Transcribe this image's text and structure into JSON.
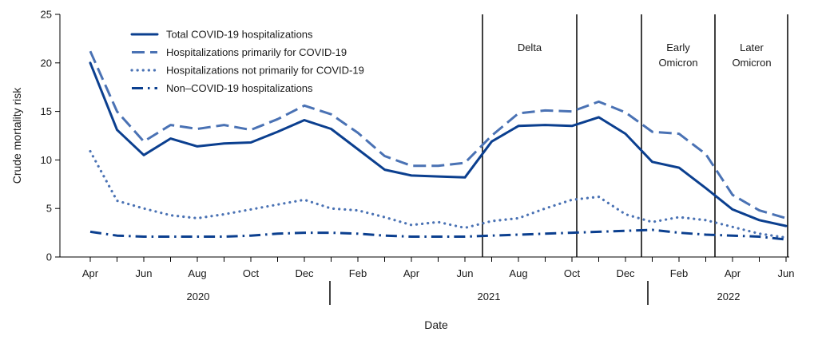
{
  "chart_data": {
    "type": "line",
    "ylabel": "Crude mortality risk",
    "xlabel": "Date",
    "ylim": [
      0,
      25
    ],
    "yticks": [
      0,
      5,
      10,
      15,
      20,
      25
    ],
    "x_tick_labels": [
      "Apr",
      "Jun",
      "Aug",
      "Oct",
      "Dec",
      "Feb",
      "Apr",
      "Jun",
      "Aug",
      "Oct",
      "Dec",
      "Feb",
      "Apr",
      "Jun"
    ],
    "year_labels": [
      "2020",
      "2021",
      "2022"
    ],
    "periods": [
      {
        "label_lines": [
          "Delta"
        ]
      },
      {
        "label_lines": [
          "Early",
          "Omicron"
        ]
      },
      {
        "label_lines": [
          "Later",
          "Omicron"
        ]
      }
    ],
    "months": [
      "Apr 2020",
      "May 2020",
      "Jun 2020",
      "Jul 2020",
      "Aug 2020",
      "Sep 2020",
      "Oct 2020",
      "Nov 2020",
      "Dec 2020",
      "Jan 2021",
      "Feb 2021",
      "Mar 2021",
      "Apr 2021",
      "May 2021",
      "Jun 2021",
      "Jul 2021",
      "Aug 2021",
      "Sep 2021",
      "Oct 2021",
      "Nov 2021",
      "Dec 2021",
      "Jan 2022",
      "Feb 2022",
      "Mar 2022",
      "Apr 2022",
      "May 2022",
      "Jun 2022"
    ],
    "series": [
      {
        "name": "Total COVID-19 hospitalizations",
        "style": "solid",
        "color": "#0b3f8f",
        "values": [
          20.0,
          13.1,
          10.5,
          12.2,
          11.4,
          11.7,
          11.8,
          12.9,
          14.1,
          13.2,
          11.1,
          9.0,
          8.4,
          8.3,
          8.2,
          11.9,
          13.5,
          13.6,
          13.5,
          14.4,
          12.7,
          9.8,
          9.2,
          7.1,
          4.9,
          3.8,
          3.2
        ]
      },
      {
        "name": "Hospitalizations primarily for COVID-19",
        "style": "dashed",
        "color": "#4a72b4",
        "values": [
          21.2,
          15.0,
          11.9,
          13.6,
          13.2,
          13.6,
          13.1,
          14.2,
          15.6,
          14.7,
          12.8,
          10.4,
          9.4,
          9.4,
          9.7,
          12.5,
          14.8,
          15.1,
          15.0,
          16.0,
          14.9,
          12.9,
          12.7,
          10.6,
          6.4,
          4.8,
          4.0
        ]
      },
      {
        "name": "Hospitalizations not primarily for COVID-19",
        "style": "dotted",
        "color": "#4a72b4",
        "values": [
          10.9,
          5.8,
          5.0,
          4.3,
          4.0,
          4.4,
          4.9,
          5.4,
          5.9,
          5.0,
          4.8,
          4.1,
          3.3,
          3.6,
          3.0,
          3.7,
          4.0,
          5.0,
          5.9,
          6.2,
          4.4,
          3.6,
          4.1,
          3.8,
          3.1,
          2.4,
          2.0
        ]
      },
      {
        "name": "Non–COVID-19 hospitalizations",
        "style": "dashdot",
        "color": "#0b3f8f",
        "values": [
          2.6,
          2.2,
          2.1,
          2.1,
          2.1,
          2.1,
          2.2,
          2.4,
          2.5,
          2.5,
          2.4,
          2.2,
          2.1,
          2.1,
          2.1,
          2.2,
          2.3,
          2.4,
          2.5,
          2.6,
          2.7,
          2.8,
          2.5,
          2.3,
          2.2,
          2.1,
          1.8
        ]
      }
    ]
  }
}
